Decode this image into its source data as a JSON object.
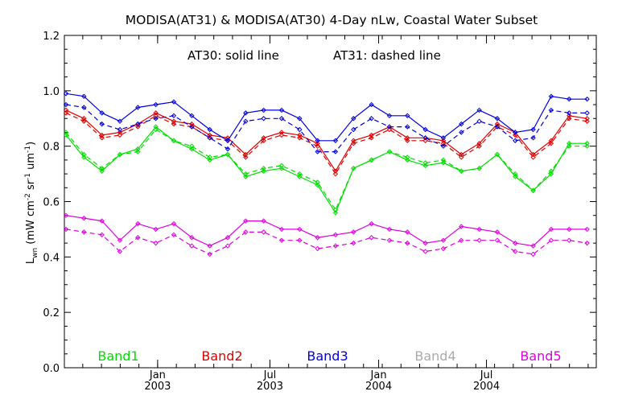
{
  "chart_data": {
    "type": "line",
    "title": "MODISA(AT31) & MODISA(AT30) 4-Day nLw, Coastal Water Subset",
    "annotation_solid": "AT30: solid line",
    "annotation_dashed": "AT31: dashed line",
    "ylabel_main": "L",
    "ylabel_sub": "wn",
    "ylabel_rest_1": " (mW cm",
    "ylabel_exp_1": "-2",
    "ylabel_rest_2": " sr",
    "ylabel_exp_2": "-1",
    "ylabel_rest_3": " um",
    "ylabel_exp_3": "-1",
    "ylabel_rest_4": ")",
    "ylim": [
      0.0,
      1.2
    ],
    "yticks": [
      "0.0",
      "0.2",
      "0.4",
      "0.6",
      "0.8",
      "1.0",
      "1.2"
    ],
    "xticks": [
      {
        "top": "Jan",
        "bottom": "2003"
      },
      {
        "top": "Jul",
        "bottom": "2003"
      },
      {
        "top": "Jan",
        "bottom": "2004"
      },
      {
        "top": "Jul",
        "bottom": "2004"
      }
    ],
    "x_tick_index": [
      5.1,
      11.35,
      17.4,
      23.4
    ],
    "n_points": 30,
    "grid": false,
    "legend_placement": "bottom",
    "series": [
      {
        "name": "Band1",
        "color": "#00dd00",
        "AT30": [
          0.84,
          0.76,
          0.71,
          0.77,
          0.79,
          0.87,
          0.82,
          0.79,
          0.75,
          0.77,
          0.69,
          0.71,
          0.72,
          0.69,
          0.66,
          0.56,
          0.72,
          0.75,
          0.78,
          0.75,
          0.73,
          0.74,
          0.71,
          0.72,
          0.77,
          0.69,
          0.64,
          0.7,
          0.81,
          0.81
        ],
        "AT31": [
          0.85,
          0.77,
          0.72,
          0.77,
          0.78,
          0.86,
          0.82,
          0.8,
          0.76,
          0.77,
          0.7,
          0.72,
          0.73,
          0.7,
          0.67,
          0.57,
          0.72,
          0.75,
          0.78,
          0.76,
          0.74,
          0.75,
          0.71,
          0.72,
          0.77,
          0.7,
          0.64,
          0.71,
          0.8,
          0.8
        ]
      },
      {
        "name": "Band2",
        "color": "#dd0000",
        "AT30": [
          0.93,
          0.9,
          0.84,
          0.85,
          0.88,
          0.92,
          0.89,
          0.88,
          0.84,
          0.83,
          0.77,
          0.83,
          0.85,
          0.84,
          0.81,
          0.71,
          0.82,
          0.84,
          0.87,
          0.83,
          0.83,
          0.82,
          0.77,
          0.81,
          0.88,
          0.85,
          0.77,
          0.82,
          0.91,
          0.9
        ],
        "AT31": [
          0.92,
          0.89,
          0.83,
          0.84,
          0.87,
          0.91,
          0.88,
          0.87,
          0.83,
          0.82,
          0.76,
          0.82,
          0.84,
          0.83,
          0.8,
          0.7,
          0.81,
          0.83,
          0.86,
          0.82,
          0.82,
          0.81,
          0.76,
          0.8,
          0.87,
          0.84,
          0.76,
          0.81,
          0.9,
          0.89
        ]
      },
      {
        "name": "Band3",
        "color": "#0000dd",
        "AT30": [
          0.99,
          0.98,
          0.92,
          0.89,
          0.94,
          0.95,
          0.96,
          0.91,
          0.86,
          0.82,
          0.92,
          0.93,
          0.93,
          0.9,
          0.82,
          0.82,
          0.9,
          0.95,
          0.91,
          0.91,
          0.86,
          0.83,
          0.88,
          0.93,
          0.9,
          0.85,
          0.86,
          0.98,
          0.97,
          0.97
        ],
        "AT31": [
          0.95,
          0.94,
          0.88,
          0.86,
          0.88,
          0.9,
          0.91,
          0.87,
          0.83,
          0.79,
          0.89,
          0.9,
          0.9,
          0.86,
          0.78,
          0.78,
          0.86,
          0.9,
          0.87,
          0.87,
          0.83,
          0.8,
          0.85,
          0.89,
          0.87,
          0.82,
          0.83,
          0.93,
          0.92,
          0.92
        ]
      },
      {
        "name": "Band4",
        "color": "#aaaaaa",
        "AT30": [],
        "AT31": []
      },
      {
        "name": "Band5",
        "color": "#dd00dd",
        "AT30": [
          0.55,
          0.54,
          0.53,
          0.46,
          0.52,
          0.5,
          0.52,
          0.47,
          0.44,
          0.47,
          0.53,
          0.53,
          0.5,
          0.5,
          0.47,
          0.48,
          0.49,
          0.52,
          0.5,
          0.49,
          0.45,
          0.46,
          0.51,
          0.5,
          0.49,
          0.45,
          0.44,
          0.5,
          0.5,
          0.5
        ],
        "AT31": [
          0.5,
          0.49,
          0.48,
          0.42,
          0.47,
          0.45,
          0.48,
          0.44,
          0.41,
          0.44,
          0.49,
          0.49,
          0.46,
          0.46,
          0.43,
          0.44,
          0.45,
          0.47,
          0.46,
          0.45,
          0.42,
          0.43,
          0.46,
          0.46,
          0.46,
          0.42,
          0.41,
          0.46,
          0.46,
          0.45
        ]
      }
    ]
  }
}
